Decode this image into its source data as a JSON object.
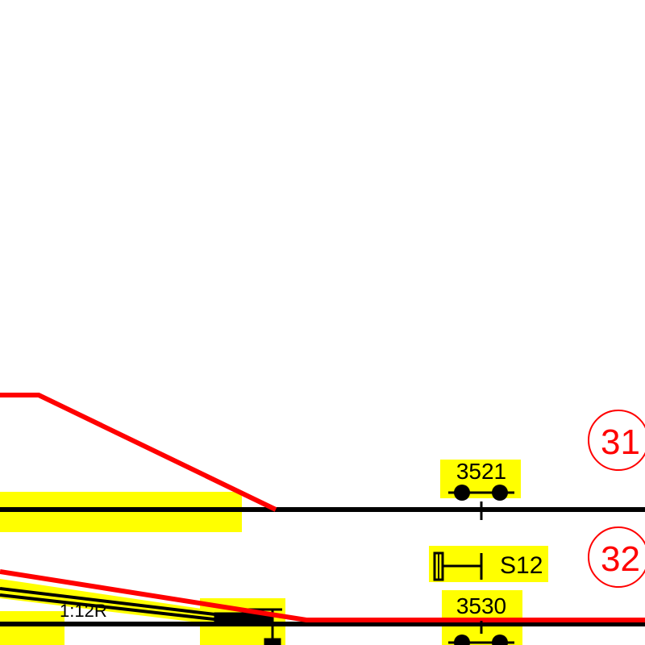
{
  "colors": {
    "background": "#ffffff",
    "track": "#000000",
    "route": "#ff0000",
    "highlight": "#ffff00"
  },
  "labels": {
    "detector_upper": "3521",
    "detector_lower": "3530",
    "signal": "S12",
    "switch": "1:12R",
    "track_upper": "31",
    "track_lower": "32"
  },
  "icons": {
    "signal": "signal-icon",
    "detector": "track-detector-icon",
    "switch_machine": "switch-machine-icon"
  }
}
